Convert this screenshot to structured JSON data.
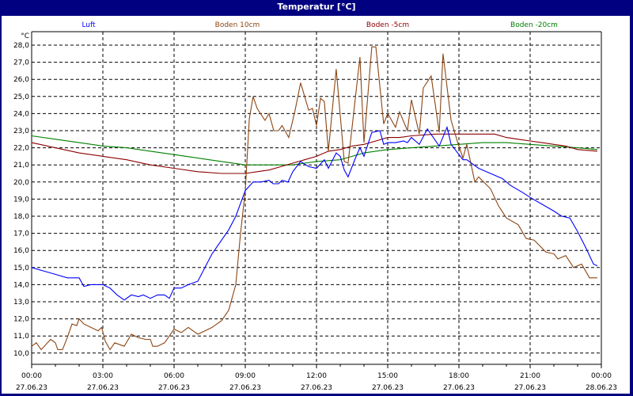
{
  "window": {
    "title": "Temperatur [°C]"
  },
  "chart_data": {
    "type": "line",
    "title": "Temperatur [°C]",
    "ylabel": "°C",
    "xlabel": "",
    "ylim": [
      10.0,
      28.0
    ],
    "xlim_hours": [
      0,
      24
    ],
    "grid": true,
    "legend_placement": "top",
    "y_ticks": [
      "10,0",
      "11,0",
      "12,0",
      "13,0",
      "14,0",
      "15,0",
      "16,0",
      "17,0",
      "18,0",
      "19,0",
      "20,0",
      "21,0",
      "22,0",
      "23,0",
      "24,0",
      "25,0",
      "26,0",
      "27,0",
      "28,0"
    ],
    "x_ticks": [
      {
        "time": "00:00",
        "date": "27.06.23"
      },
      {
        "time": "03:00",
        "date": "27.06.23"
      },
      {
        "time": "06:00",
        "date": "27.06.23"
      },
      {
        "time": "09:00",
        "date": "27.06.23"
      },
      {
        "time": "12:00",
        "date": "27.06.23"
      },
      {
        "time": "15:00",
        "date": "27.06.23"
      },
      {
        "time": "18:00",
        "date": "27.06.23"
      },
      {
        "time": "21:00",
        "date": "27.06.23"
      },
      {
        "time": "00:00",
        "date": "28.06.23"
      }
    ],
    "series": [
      {
        "name": "Luft",
        "color": "#0000ff",
        "x": [
          0,
          0.5,
          1,
          1.5,
          2,
          2.2,
          2.5,
          3,
          3.3,
          3.6,
          3.9,
          4.2,
          4.5,
          4.7,
          5,
          5.3,
          5.6,
          5.8,
          6,
          6.3,
          6.6,
          7,
          7.3,
          7.6,
          8,
          8.3,
          8.6,
          9,
          9.33,
          9.67,
          10,
          10.17,
          10.4,
          10.55,
          10.8,
          11,
          11.33,
          11.67,
          12,
          12.33,
          12.5,
          12.83,
          13,
          13.17,
          13.33,
          13.67,
          13.83,
          14,
          14.33,
          14.67,
          14.83,
          15,
          15.33,
          15.67,
          15.83,
          16,
          16.33,
          16.67,
          17.17,
          17.5,
          17.67,
          18.17,
          18.33,
          18.83,
          19.33,
          19.83,
          20.17,
          20.67,
          21,
          21.5,
          22,
          22.33,
          22.67,
          23,
          23.33,
          23.67,
          23.83
        ],
        "values": [
          15.0,
          14.8,
          14.6,
          14.4,
          14.4,
          13.9,
          14.0,
          14.0,
          13.8,
          13.4,
          13.1,
          13.4,
          13.3,
          13.4,
          13.2,
          13.4,
          13.4,
          13.2,
          13.8,
          13.8,
          14.0,
          14.2,
          15.0,
          15.8,
          16.6,
          17.2,
          18.0,
          19.5,
          20.0,
          20.0,
          20.1,
          19.9,
          19.9,
          20.1,
          20.0,
          20.6,
          21.2,
          20.9,
          20.8,
          21.3,
          20.8,
          21.7,
          21.5,
          20.7,
          20.3,
          21.5,
          22.0,
          21.5,
          22.9,
          23.0,
          22.2,
          22.3,
          22.3,
          22.4,
          22.3,
          22.6,
          22.2,
          23.1,
          22.1,
          23.2,
          22.2,
          21.3,
          21.3,
          20.8,
          20.5,
          20.2,
          19.8,
          19.4,
          19.1,
          18.7,
          18.3,
          18.0,
          17.9,
          17.1,
          16.2,
          15.2,
          15.1
        ]
      },
      {
        "name": "Boden 10cm",
        "color": "#8b4513",
        "x": [
          0,
          0.2,
          0.4,
          0.6,
          0.8,
          1,
          1.1,
          1.3,
          1.5,
          1.7,
          1.9,
          2,
          2.2,
          2.5,
          2.8,
          2.95,
          3.1,
          3.3,
          3.5,
          3.9,
          4.2,
          4.5,
          4.8,
          5,
          5.1,
          5.3,
          5.6,
          6,
          6.3,
          6.6,
          6.8,
          7,
          7.3,
          7.6,
          8,
          8.3,
          8.6,
          8.8,
          9,
          9.17,
          9.33,
          9.5,
          9.83,
          10,
          10.2,
          10.4,
          10.55,
          10.83,
          11.1,
          11.33,
          11.67,
          11.83,
          12,
          12.17,
          12.33,
          12.5,
          12.83,
          13.17,
          13.33,
          13.83,
          14,
          14.33,
          14.5,
          14.83,
          15,
          15.33,
          15.5,
          15.83,
          16,
          16.33,
          16.5,
          16.83,
          17.17,
          17.33,
          17.67,
          17.95,
          18.17,
          18.33,
          18.67,
          18.83,
          19.33,
          19.67,
          20,
          20.5,
          20.83,
          21.17,
          21.67,
          22,
          22.17,
          22.5,
          22.83,
          23.17,
          23.5,
          23.83
        ],
        "values": [
          10.4,
          10.6,
          10.2,
          10.5,
          10.8,
          10.6,
          10.2,
          10.2,
          10.9,
          11.7,
          11.6,
          12.0,
          11.7,
          11.5,
          11.3,
          11.5,
          10.7,
          10.2,
          10.6,
          10.4,
          11.1,
          10.9,
          10.8,
          10.8,
          10.4,
          10.4,
          10.6,
          11.4,
          11.2,
          11.5,
          11.3,
          11.1,
          11.3,
          11.5,
          11.9,
          12.5,
          14.0,
          17.0,
          19.5,
          23.7,
          25.0,
          24.3,
          23.6,
          24.0,
          23.0,
          23.0,
          23.3,
          22.6,
          24.2,
          25.8,
          24.2,
          24.3,
          23.3,
          24.9,
          24.7,
          21.8,
          26.6,
          21.2,
          21.1,
          27.3,
          22.3,
          27.9,
          27.9,
          23.4,
          24.0,
          23.2,
          24.1,
          23.0,
          24.8,
          22.8,
          25.5,
          26.2,
          22.9,
          27.5,
          23.6,
          22.3,
          21.4,
          22.2,
          20.0,
          20.3,
          19.6,
          18.6,
          17.9,
          17.5,
          16.7,
          16.6,
          15.9,
          15.8,
          15.5,
          15.7,
          15.0,
          15.2,
          14.4,
          14.4
        ]
      },
      {
        "name": "Boden -5cm",
        "color": "#8b0000",
        "x": [
          0,
          1,
          2,
          3,
          4,
          5,
          6,
          7,
          8,
          9,
          9.5,
          10,
          10.5,
          11,
          11.5,
          12,
          12.5,
          13,
          13.5,
          14,
          14.5,
          15,
          15.5,
          16,
          17,
          18,
          19,
          19.5,
          20,
          20.5,
          21,
          21.5,
          22,
          22.5,
          23,
          23.83
        ],
        "values": [
          22.3,
          22.0,
          21.7,
          21.5,
          21.3,
          21.0,
          20.8,
          20.6,
          20.5,
          20.5,
          20.6,
          20.7,
          20.9,
          21.1,
          21.3,
          21.5,
          21.8,
          21.9,
          22.1,
          22.2,
          22.4,
          22.6,
          22.6,
          22.7,
          22.8,
          22.8,
          22.8,
          22.8,
          22.6,
          22.5,
          22.4,
          22.3,
          22.2,
          22.1,
          21.9,
          21.8
        ]
      },
      {
        "name": "Boden -20cm",
        "color": "#008000",
        "x": [
          0,
          1,
          2,
          3,
          4,
          5,
          6,
          7,
          8,
          9,
          10,
          11,
          11.5,
          12,
          13,
          13.5,
          14,
          14.5,
          15,
          16,
          17,
          18,
          19,
          20,
          21,
          22,
          23,
          23.83
        ],
        "values": [
          22.7,
          22.5,
          22.3,
          22.1,
          22.0,
          21.8,
          21.6,
          21.4,
          21.2,
          21.0,
          21.0,
          21.0,
          21.1,
          21.2,
          21.3,
          21.5,
          21.7,
          21.8,
          21.9,
          22.0,
          22.1,
          22.2,
          22.3,
          22.3,
          22.2,
          22.1,
          22.0,
          21.9
        ]
      }
    ]
  }
}
